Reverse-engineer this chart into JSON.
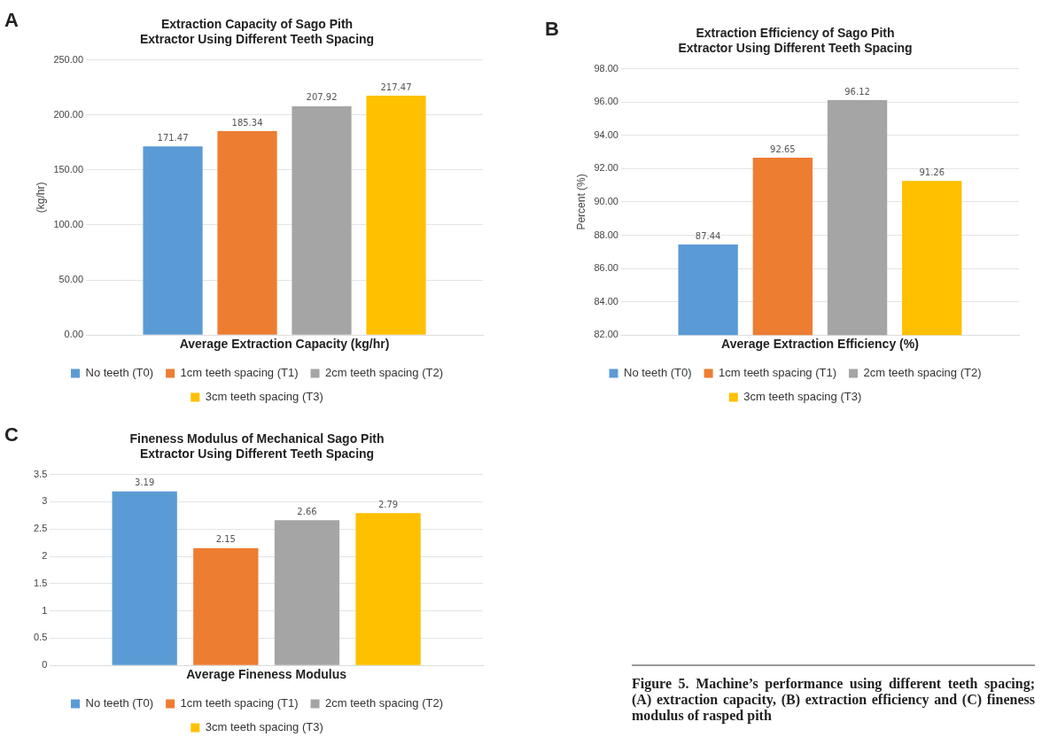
{
  "chart_data": [
    {
      "type": "bar",
      "title": "Extraction Capacity of Sago Pith Extractor Using Different Teeth Spacing",
      "ylabel": "(kg/hr)",
      "categories": [
        "Average Extraction Capacity (kg/hr)"
      ],
      "series": [
        {
          "name": "No teeth (T0)",
          "color": "#5b9bd5",
          "values": [
            171.47
          ]
        },
        {
          "name": "1cm teeth spacing (T1)",
          "color": "#ed7d31",
          "values": [
            185.34
          ]
        },
        {
          "name": "2cm teeth spacing (T2)",
          "color": "#a5a5a5",
          "values": [
            207.92
          ]
        },
        {
          "name": "3cm teeth spacing (T3)",
          "color": "#ffc000",
          "values": [
            217.47
          ]
        }
      ],
      "ylim": [
        0,
        250
      ],
      "yticks": [
        {
          "value": 0,
          "label": "0.00"
        },
        {
          "value": 50,
          "label": "50.00"
        },
        {
          "value": 100,
          "label": "100.00"
        },
        {
          "value": 150,
          "label": "150.00"
        },
        {
          "value": 200,
          "label": "200.00"
        },
        {
          "value": 250,
          "label": "250.00"
        }
      ],
      "grid": "y",
      "legend": "bottom",
      "data_labels": true,
      "annotations": [
        "A"
      ]
    },
    {
      "type": "bar",
      "title": "Extraction Efficiency of Sago Pith Extractor Using Different Teeth Spacing",
      "ylabel": "Percent (%)",
      "categories": [
        "Average Extraction Efficiency (%)"
      ],
      "series": [
        {
          "name": "No teeth (T0)",
          "color": "#5b9bd5",
          "values": [
            87.44
          ]
        },
        {
          "name": "1cm teeth spacing (T1)",
          "color": "#ed7d31",
          "values": [
            92.65
          ]
        },
        {
          "name": "2cm teeth spacing (T2)",
          "color": "#a5a5a5",
          "values": [
            96.12
          ]
        },
        {
          "name": "3cm teeth spacing (T3)",
          "color": "#ffc000",
          "values": [
            91.26
          ]
        }
      ],
      "ylim": [
        82,
        98
      ],
      "yticks": [
        {
          "value": 82,
          "label": "82.00"
        },
        {
          "value": 84,
          "label": "84.00"
        },
        {
          "value": 86,
          "label": "86.00"
        },
        {
          "value": 88,
          "label": "88.00"
        },
        {
          "value": 90,
          "label": "90.00"
        },
        {
          "value": 92,
          "label": "92.00"
        },
        {
          "value": 94,
          "label": "94.00"
        },
        {
          "value": 96,
          "label": "96.00"
        },
        {
          "value": 98,
          "label": "98.00"
        }
      ],
      "grid": "y",
      "legend": "bottom",
      "data_labels": true,
      "annotations": [
        "B"
      ]
    },
    {
      "type": "bar",
      "title": "Fineness Modulus of Mechanical Sago Pith Extractor Using Different Teeth Spacing",
      "categories": [
        "Average Fineness Modulus"
      ],
      "series": [
        {
          "name": "No teeth (T0)",
          "color": "#5b9bd5",
          "values": [
            3.19
          ]
        },
        {
          "name": "1cm teeth spacing (T1)",
          "color": "#ed7d31",
          "values": [
            2.15
          ]
        },
        {
          "name": "2cm teeth spacing (T2)",
          "color": "#a5a5a5",
          "values": [
            2.66
          ]
        },
        {
          "name": "3cm teeth spacing (T3)",
          "color": "#ffc000",
          "values": [
            2.79
          ]
        }
      ],
      "ylim": [
        0,
        3.5
      ],
      "yticks": [
        0,
        0.5,
        1,
        1.5,
        2,
        2.5,
        3,
        3.5
      ],
      "grid": "y",
      "legend": "bottom",
      "data_labels": true,
      "annotations": [
        "C",
        "Figure 5. Machine’s performance using different teeth spacing; (A) extraction capacity, (B) extraction efficiency and (C) fineness modulus of rasped pith"
      ]
    }
  ]
}
